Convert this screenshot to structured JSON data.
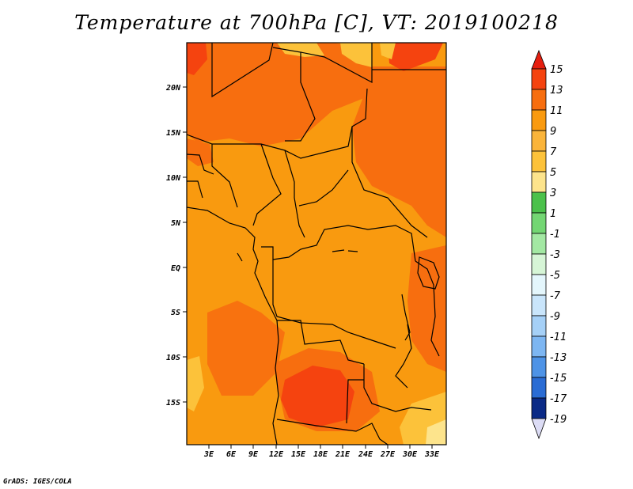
{
  "title": "Temperature at 700hPa [C], VT: 2019100218",
  "credit": "GrADS: IGES/COLA",
  "map": {
    "lon_labels": [
      "3E",
      "6E",
      "9E",
      "12E",
      "15E",
      "18E",
      "21E",
      "24E",
      "27E",
      "30E",
      "33E"
    ],
    "lat_labels": [
      "20N",
      "15N",
      "10N",
      "5N",
      "EQ",
      "5S",
      "10S",
      "15S"
    ]
  },
  "colorbar": {
    "labels": [
      "15",
      "13",
      "11",
      "9",
      "7",
      "5",
      "3",
      "1",
      "-1",
      "-3",
      "-5",
      "-7",
      "-9",
      "-11",
      "-13",
      "-15",
      "-17",
      "-19"
    ],
    "colors": [
      "#e51e0f",
      "#f5430f",
      "#f76e0f",
      "#f99a0f",
      "#fcc23a",
      "#fde48c",
      "#fcf8c2",
      "#4bc14b",
      "#73d673",
      "#a3e8a3",
      "#cdf3cd",
      "#e4f6fc",
      "#c9e5fb",
      "#a5d0f7",
      "#7db6f2",
      "#4e93e6",
      "#2a6cd4",
      "#1446b0",
      "#0a2a86",
      "#0a0a50",
      "#dcdcf5"
    ]
  }
}
